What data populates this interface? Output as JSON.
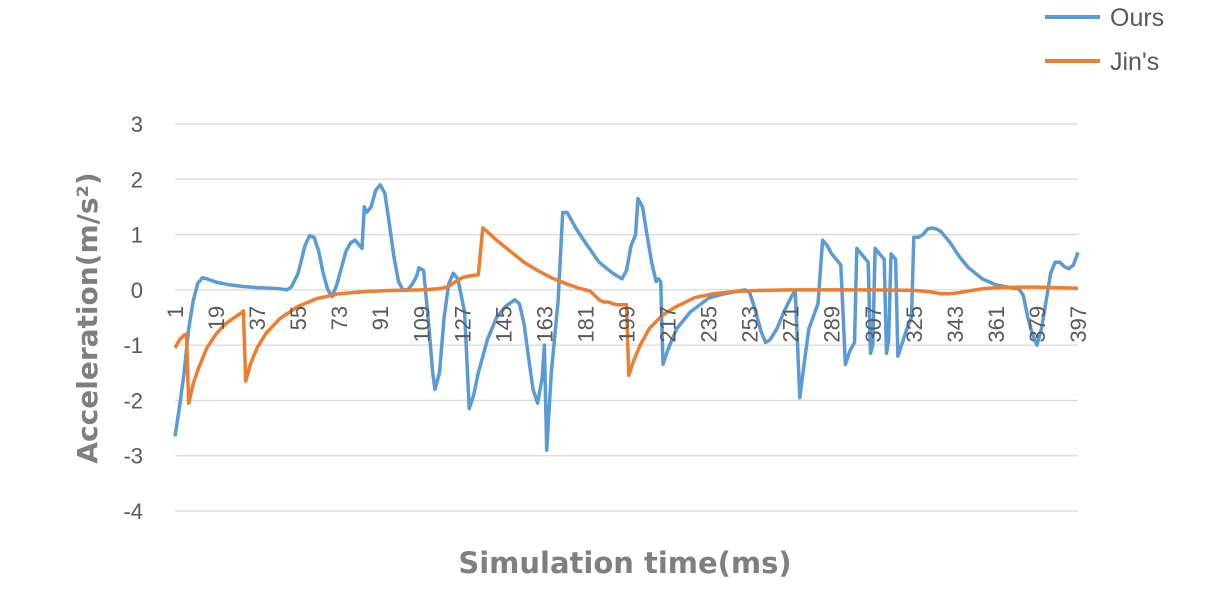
{
  "chart_data": {
    "type": "line",
    "xlabel": "Simulation time(ms)",
    "ylabel": "Acceleration(m/s²)",
    "ylim": [
      -4,
      3
    ],
    "yticks": [
      -4,
      -3,
      -2,
      -1,
      0,
      1,
      2,
      3
    ],
    "xticks": [
      1,
      19,
      37,
      55,
      73,
      91,
      109,
      127,
      145,
      163,
      181,
      199,
      217,
      235,
      253,
      271,
      289,
      307,
      325,
      343,
      361,
      379,
      397
    ],
    "xlim": [
      1,
      397
    ],
    "grid": "horizontal",
    "legend": "top-right",
    "series": [
      {
        "name": "Ours",
        "color": "#5b9bd5",
        "points": [
          [
            1,
            -2.65
          ],
          [
            3,
            -2.1
          ],
          [
            5,
            -1.5
          ],
          [
            7,
            -0.7
          ],
          [
            9,
            -0.2
          ],
          [
            11,
            0.12
          ],
          [
            13,
            0.22
          ],
          [
            15,
            0.2
          ],
          [
            19,
            0.14
          ],
          [
            25,
            0.09
          ],
          [
            31,
            0.06
          ],
          [
            37,
            0.04
          ],
          [
            43,
            0.03
          ],
          [
            47,
            0.02
          ],
          [
            50,
            0.0
          ],
          [
            52,
            0.05
          ],
          [
            55,
            0.3
          ],
          [
            58,
            0.8
          ],
          [
            60,
            0.98
          ],
          [
            62,
            0.95
          ],
          [
            64,
            0.7
          ],
          [
            66,
            0.3
          ],
          [
            68,
            0.0
          ],
          [
            70,
            -0.12
          ],
          [
            72,
            0.1
          ],
          [
            74,
            0.4
          ],
          [
            76,
            0.7
          ],
          [
            78,
            0.85
          ],
          [
            80,
            0.9
          ],
          [
            82,
            0.8
          ],
          [
            83,
            0.75
          ],
          [
            84,
            1.5
          ],
          [
            85,
            1.4
          ],
          [
            87,
            1.5
          ],
          [
            89,
            1.8
          ],
          [
            91,
            1.9
          ],
          [
            93,
            1.75
          ],
          [
            95,
            1.2
          ],
          [
            97,
            0.6
          ],
          [
            99,
            0.15
          ],
          [
            101,
            0.0
          ],
          [
            103,
            0.0
          ],
          [
            105,
            0.1
          ],
          [
            107,
            0.25
          ],
          [
            108,
            0.4
          ],
          [
            110,
            0.35
          ],
          [
            112,
            -0.5
          ],
          [
            114,
            -1.5
          ],
          [
            115,
            -1.8
          ],
          [
            117,
            -1.5
          ],
          [
            119,
            -0.5
          ],
          [
            121,
            0.1
          ],
          [
            123,
            0.3
          ],
          [
            125,
            0.2
          ],
          [
            127,
            -0.2
          ],
          [
            128,
            -0.4
          ],
          [
            130,
            -2.15
          ],
          [
            132,
            -1.9
          ],
          [
            134,
            -1.5
          ],
          [
            138,
            -0.9
          ],
          [
            142,
            -0.5
          ],
          [
            146,
            -0.3
          ],
          [
            150,
            -0.18
          ],
          [
            152,
            -0.25
          ],
          [
            154,
            -0.6
          ],
          [
            156,
            -1.2
          ],
          [
            158,
            -1.8
          ],
          [
            160,
            -2.05
          ],
          [
            162,
            -1.6
          ],
          [
            163,
            -1.0
          ],
          [
            164,
            -2.9
          ],
          [
            166,
            -1.5
          ],
          [
            169,
            -0.2
          ],
          [
            171,
            1.4
          ],
          [
            173,
            1.4
          ],
          [
            177,
            1.1
          ],
          [
            181,
            0.85
          ],
          [
            187,
            0.5
          ],
          [
            193,
            0.3
          ],
          [
            197,
            0.2
          ],
          [
            199,
            0.35
          ],
          [
            201,
            0.8
          ],
          [
            203,
            1.0
          ],
          [
            204,
            1.65
          ],
          [
            206,
            1.5
          ],
          [
            208,
            1.0
          ],
          [
            210,
            0.5
          ],
          [
            212,
            0.15
          ],
          [
            213,
            0.2
          ],
          [
            214,
            0.15
          ],
          [
            215,
            -1.35
          ],
          [
            217,
            -1.1
          ],
          [
            221,
            -0.7
          ],
          [
            227,
            -0.4
          ],
          [
            235,
            -0.15
          ],
          [
            241,
            -0.08
          ],
          [
            247,
            -0.03
          ],
          [
            251,
            0.0
          ],
          [
            253,
            -0.05
          ],
          [
            255,
            -0.3
          ],
          [
            258,
            -0.75
          ],
          [
            260,
            -0.95
          ],
          [
            262,
            -0.9
          ],
          [
            265,
            -0.7
          ],
          [
            268,
            -0.4
          ],
          [
            271,
            -0.15
          ],
          [
            273,
            0.0
          ],
          [
            275,
            -1.95
          ],
          [
            277,
            -1.3
          ],
          [
            279,
            -0.7
          ],
          [
            283,
            -0.25
          ],
          [
            285,
            0.9
          ],
          [
            287,
            0.8
          ],
          [
            289,
            0.65
          ],
          [
            291,
            0.55
          ],
          [
            293,
            0.45
          ],
          [
            295,
            -1.35
          ],
          [
            297,
            -1.1
          ],
          [
            299,
            -0.95
          ],
          [
            300,
            0.75
          ],
          [
            301,
            0.7
          ],
          [
            303,
            0.6
          ],
          [
            305,
            0.5
          ],
          [
            306,
            -1.15
          ],
          [
            307,
            -1.0
          ],
          [
            308,
            0.75
          ],
          [
            310,
            0.65
          ],
          [
            312,
            0.55
          ],
          [
            313,
            -1.15
          ],
          [
            314,
            -0.9
          ],
          [
            315,
            0.65
          ],
          [
            317,
            0.55
          ],
          [
            318,
            -1.2
          ],
          [
            320,
            -0.95
          ],
          [
            322,
            -0.7
          ],
          [
            324,
            -0.5
          ],
          [
            325,
            0.95
          ],
          [
            327,
            0.95
          ],
          [
            329,
            1.0
          ],
          [
            331,
            1.1
          ],
          [
            333,
            1.12
          ],
          [
            335,
            1.1
          ],
          [
            337,
            1.05
          ],
          [
            341,
            0.85
          ],
          [
            345,
            0.6
          ],
          [
            349,
            0.4
          ],
          [
            355,
            0.2
          ],
          [
            361,
            0.09
          ],
          [
            367,
            0.04
          ],
          [
            371,
            0.02
          ],
          [
            373,
            -0.1
          ],
          [
            375,
            -0.5
          ],
          [
            377,
            -0.8
          ],
          [
            379,
            -1.0
          ],
          [
            381,
            -0.7
          ],
          [
            383,
            -0.2
          ],
          [
            385,
            0.3
          ],
          [
            387,
            0.5
          ],
          [
            389,
            0.5
          ],
          [
            391,
            0.42
          ],
          [
            393,
            0.38
          ],
          [
            395,
            0.45
          ],
          [
            397,
            0.68
          ]
        ]
      },
      {
        "name": "Jin's",
        "color": "#ed7d31",
        "points": [
          [
            1,
            -1.05
          ],
          [
            3,
            -0.9
          ],
          [
            5,
            -0.82
          ],
          [
            6,
            -0.8
          ],
          [
            7,
            -2.05
          ],
          [
            9,
            -1.7
          ],
          [
            11,
            -1.45
          ],
          [
            15,
            -1.05
          ],
          [
            19,
            -0.8
          ],
          [
            23,
            -0.62
          ],
          [
            27,
            -0.5
          ],
          [
            30,
            -0.42
          ],
          [
            31,
            -0.38
          ],
          [
            32,
            -1.65
          ],
          [
            34,
            -1.35
          ],
          [
            37,
            -1.05
          ],
          [
            41,
            -0.78
          ],
          [
            47,
            -0.52
          ],
          [
            55,
            -0.3
          ],
          [
            63,
            -0.16
          ],
          [
            73,
            -0.07
          ],
          [
            85,
            -0.03
          ],
          [
            97,
            -0.01
          ],
          [
            109,
            0.0
          ],
          [
            117,
            0.02
          ],
          [
            121,
            0.06
          ],
          [
            124,
            0.15
          ],
          [
            127,
            0.22
          ],
          [
            130,
            0.25
          ],
          [
            134,
            0.27
          ],
          [
            136,
            1.12
          ],
          [
            138,
            1.05
          ],
          [
            142,
            0.9
          ],
          [
            148,
            0.7
          ],
          [
            154,
            0.5
          ],
          [
            160,
            0.35
          ],
          [
            166,
            0.22
          ],
          [
            172,
            0.12
          ],
          [
            178,
            0.03
          ],
          [
            183,
            -0.02
          ],
          [
            185,
            -0.1
          ],
          [
            187,
            -0.18
          ],
          [
            189,
            -0.22
          ],
          [
            191,
            -0.22
          ],
          [
            193,
            -0.25
          ],
          [
            195,
            -0.27
          ],
          [
            199,
            -0.27
          ],
          [
            200,
            -1.55
          ],
          [
            202,
            -1.3
          ],
          [
            205,
            -1.0
          ],
          [
            209,
            -0.7
          ],
          [
            215,
            -0.45
          ],
          [
            221,
            -0.3
          ],
          [
            229,
            -0.14
          ],
          [
            237,
            -0.07
          ],
          [
            247,
            -0.03
          ],
          [
            257,
            -0.01
          ],
          [
            271,
            0.0
          ],
          [
            289,
            0.0
          ],
          [
            307,
            0.0
          ],
          [
            325,
            -0.01
          ],
          [
            331,
            -0.03
          ],
          [
            337,
            -0.07
          ],
          [
            341,
            -0.07
          ],
          [
            345,
            -0.05
          ],
          [
            349,
            -0.02
          ],
          [
            355,
            0.02
          ],
          [
            361,
            0.04
          ],
          [
            371,
            0.05
          ],
          [
            379,
            0.05
          ],
          [
            387,
            0.04
          ],
          [
            397,
            0.03
          ]
        ]
      }
    ]
  }
}
